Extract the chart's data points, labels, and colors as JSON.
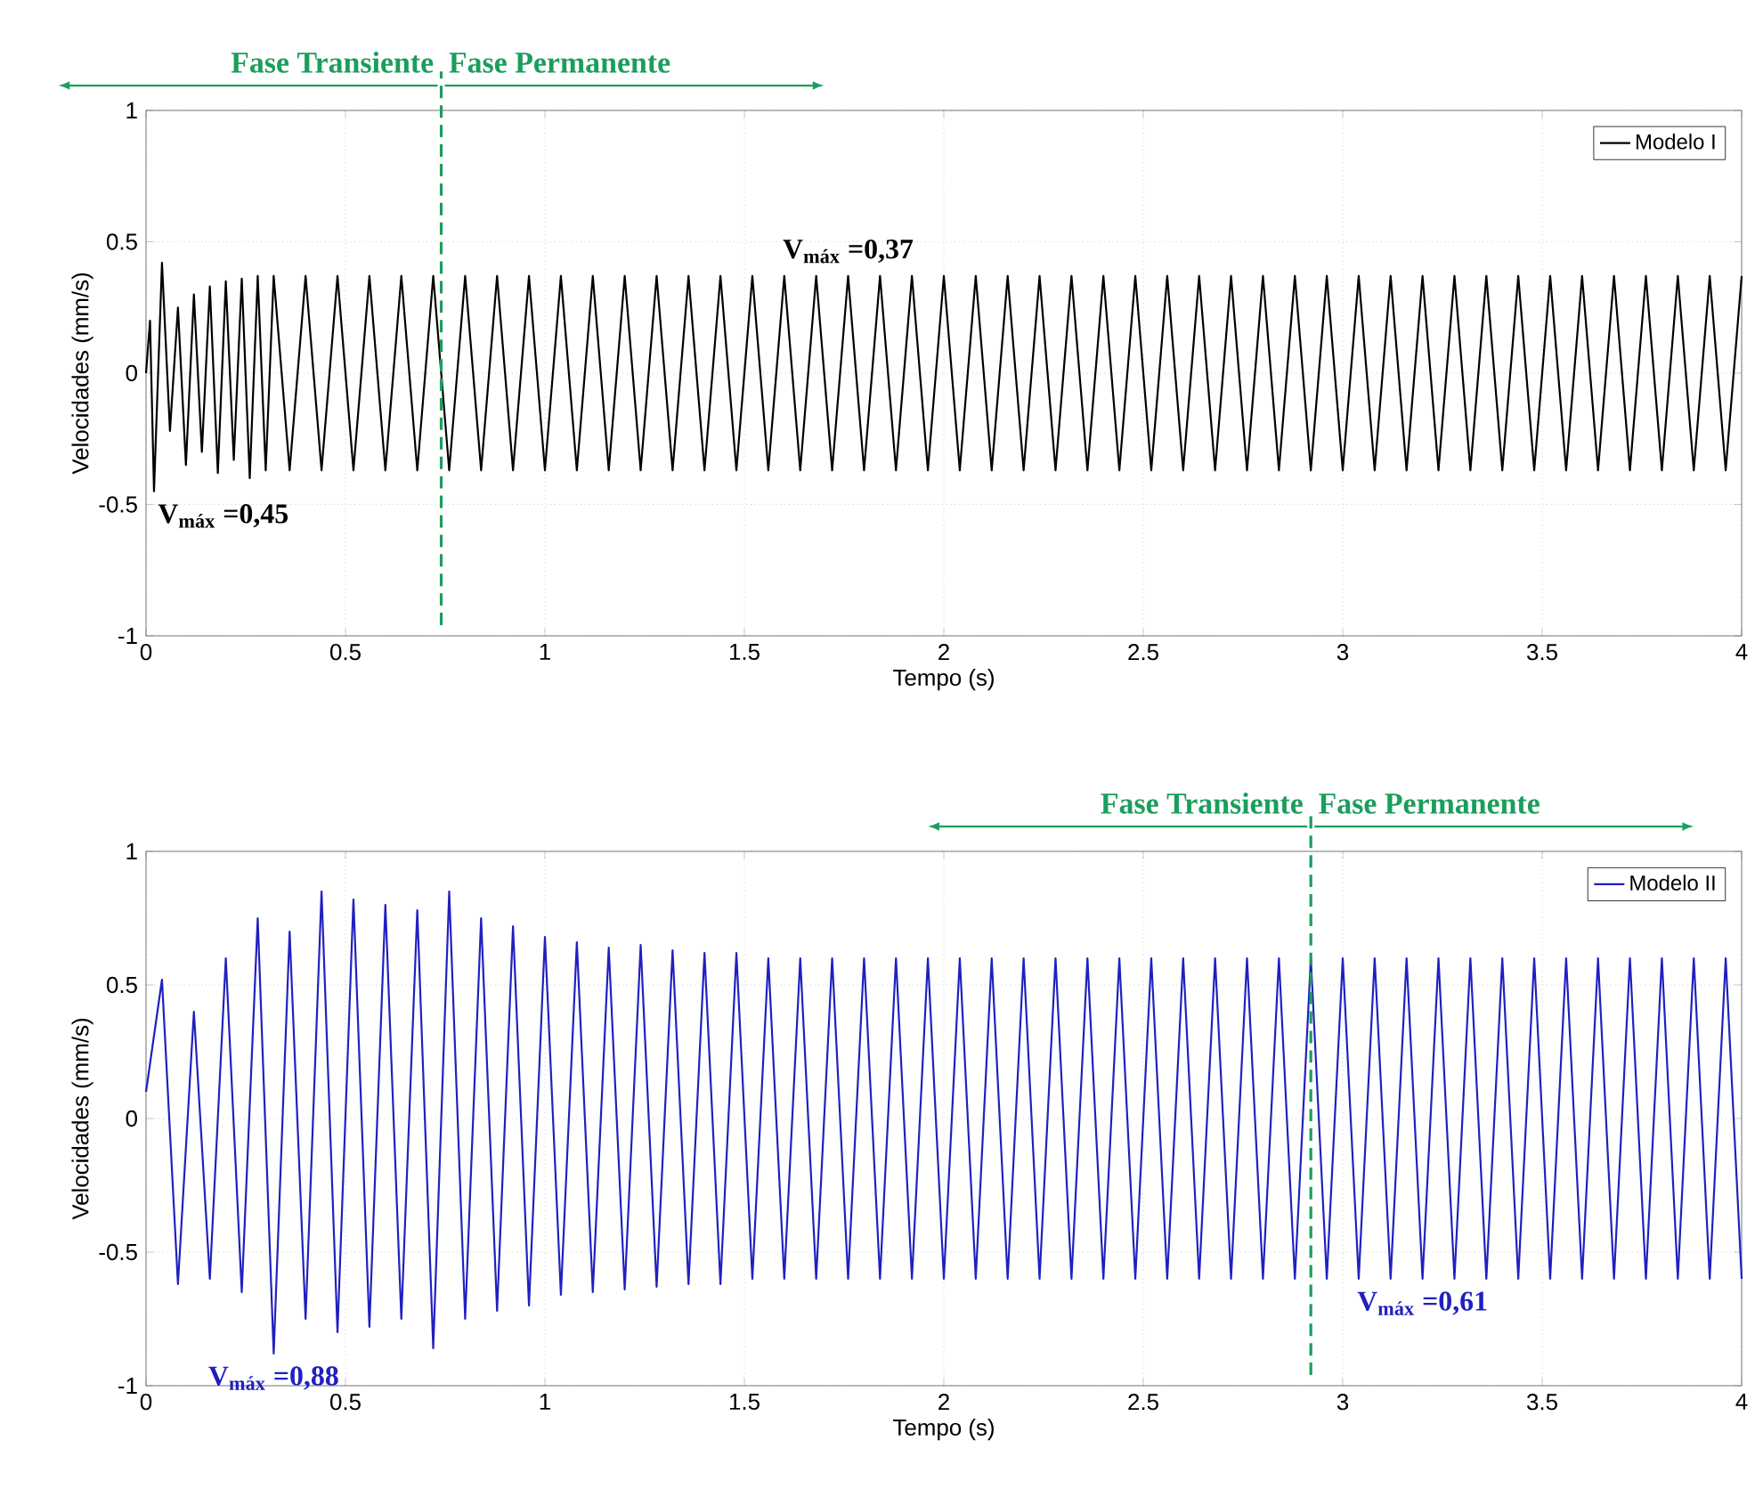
{
  "chart_data": [
    {
      "type": "line",
      "xlabel": "Tempo (s)",
      "ylabel": "Velocidades (mm/s)",
      "xlim": [
        0,
        4
      ],
      "ylim": [
        -1,
        1
      ],
      "xticks": [
        0,
        0.5,
        1,
        1.5,
        2,
        2.5,
        3,
        3.5,
        4
      ],
      "yticks": [
        -1,
        -0.5,
        0,
        0.5,
        1
      ],
      "grid": true,
      "legend": "top right",
      "marker": "none",
      "line_style": "solid",
      "series": [
        {
          "name": "Modelo I",
          "color": "#000000",
          "x": [
            0,
            0.01,
            0.02,
            0.04,
            0.06,
            0.08,
            0.1,
            0.12,
            0.14,
            0.16,
            0.18,
            0.2,
            0.22,
            0.24,
            0.26,
            0.28,
            0.3,
            0.32,
            0.36,
            0.4,
            0.44,
            0.48,
            0.52,
            0.56,
            0.6,
            0.64,
            0.68,
            0.72,
            0.76,
            0.8,
            0.84,
            0.88,
            0.92,
            0.96,
            1.0,
            1.04,
            1.08,
            1.12,
            1.16,
            1.2,
            1.24,
            1.28,
            1.32,
            1.36,
            1.4,
            1.44,
            1.48,
            1.52,
            1.56,
            1.6,
            1.64,
            1.68,
            1.72,
            1.76,
            1.8,
            1.84,
            1.88,
            1.92,
            1.96,
            2.0,
            2.04,
            2.08,
            2.12,
            2.16,
            2.2,
            2.24,
            2.28,
            2.32,
            2.36,
            2.4,
            2.44,
            2.48,
            2.52,
            2.56,
            2.6,
            2.64,
            2.68,
            2.72,
            2.76,
            2.8,
            2.84,
            2.88,
            2.92,
            2.96,
            3.0,
            3.04,
            3.08,
            3.12,
            3.16,
            3.2,
            3.24,
            3.28,
            3.32,
            3.36,
            3.4,
            3.44,
            3.48,
            3.52,
            3.56,
            3.6,
            3.64,
            3.68,
            3.72,
            3.76,
            3.8,
            3.84,
            3.88,
            3.92,
            3.96,
            4.0
          ],
          "values": [
            0,
            0.2,
            -0.45,
            0.42,
            -0.22,
            0.25,
            -0.35,
            0.3,
            -0.3,
            0.33,
            -0.38,
            0.35,
            -0.33,
            0.36,
            -0.4,
            0.37,
            -0.37,
            0.37,
            -0.37,
            0.37,
            -0.37,
            0.37,
            -0.37,
            0.37,
            -0.37,
            0.37,
            -0.37,
            0.37,
            -0.37,
            0.37,
            -0.37,
            0.37,
            -0.37,
            0.37,
            -0.37,
            0.37,
            -0.37,
            0.37,
            -0.37,
            0.37,
            -0.37,
            0.37,
            -0.37,
            0.37,
            -0.37,
            0.37,
            -0.37,
            0.37,
            -0.37,
            0.37,
            -0.37,
            0.37,
            -0.37,
            0.37,
            -0.37,
            0.37,
            -0.37,
            0.37,
            -0.37,
            0.37,
            -0.37,
            0.37,
            -0.37,
            0.37,
            -0.37,
            0.37,
            -0.37,
            0.37,
            -0.37,
            0.37,
            -0.37,
            0.37,
            -0.37,
            0.37,
            -0.37,
            0.37,
            -0.37,
            0.37,
            -0.37,
            0.37,
            -0.37,
            0.37,
            -0.37,
            0.37,
            -0.37,
            0.37,
            -0.37,
            0.37,
            -0.37,
            0.37,
            -0.37,
            0.37,
            -0.37,
            0.37,
            -0.37,
            0.37,
            -0.37,
            0.37,
            -0.37,
            0.37,
            -0.37,
            0.37,
            -0.37,
            0.37,
            -0.37,
            0.37,
            -0.37,
            0.37,
            -0.37,
            0.37
          ]
        }
      ],
      "ref_lines": [
        {
          "axis": "x",
          "value": 0.74,
          "color": "#1a9e5c",
          "line_style": "dashed"
        }
      ],
      "annotations": [
        "Fase Transiente",
        "Fase Permanente",
        {
          "text": "V$_{máx}$ =0,45",
          "x": 0.02,
          "y": -0.45
        },
        {
          "text": "V$_{máx}$ =0,37",
          "x": 1.76,
          "y": 0.37
        }
      ]
    },
    {
      "type": "line",
      "xlabel": "Tempo (s)",
      "ylabel": "Velocidades (mm/s)",
      "xlim": [
        0,
        4
      ],
      "ylim": [
        -1,
        1
      ],
      "xticks": [
        0,
        0.5,
        1,
        1.5,
        2,
        2.5,
        3,
        3.5,
        4
      ],
      "yticks": [
        -1,
        -0.5,
        0,
        0.5,
        1
      ],
      "grid": true,
      "legend": "top right",
      "marker": "none",
      "line_style": "solid",
      "series": [
        {
          "name": "Modelo II",
          "color": "#2020c0",
          "x": [
            0,
            0.04,
            0.08,
            0.12,
            0.16,
            0.2,
            0.24,
            0.28,
            0.32,
            0.36,
            0.4,
            0.44,
            0.48,
            0.52,
            0.56,
            0.6,
            0.64,
            0.68,
            0.72,
            0.76,
            0.8,
            0.84,
            0.88,
            0.92,
            0.96,
            1.0,
            1.04,
            1.08,
            1.12,
            1.16,
            1.2,
            1.24,
            1.28,
            1.32,
            1.36,
            1.4,
            1.44,
            1.48,
            1.52,
            1.56,
            1.6,
            1.64,
            1.68,
            1.72,
            1.76,
            1.8,
            1.84,
            1.88,
            1.92,
            1.96,
            2.0,
            2.04,
            2.08,
            2.12,
            2.16,
            2.2,
            2.24,
            2.28,
            2.32,
            2.36,
            2.4,
            2.44,
            2.48,
            2.52,
            2.56,
            2.6,
            2.64,
            2.68,
            2.72,
            2.76,
            2.8,
            2.84,
            2.88,
            2.92,
            2.96,
            3.0,
            3.04,
            3.08,
            3.12,
            3.16,
            3.2,
            3.24,
            3.28,
            3.32,
            3.36,
            3.4,
            3.44,
            3.48,
            3.52,
            3.56,
            3.6,
            3.64,
            3.68,
            3.72,
            3.76,
            3.8,
            3.84,
            3.88,
            3.92,
            3.96,
            4.0
          ],
          "values": [
            0.1,
            0.52,
            -0.62,
            0.4,
            -0.6,
            0.6,
            -0.65,
            0.75,
            -0.88,
            0.7,
            -0.75,
            0.85,
            -0.8,
            0.82,
            -0.78,
            0.8,
            -0.75,
            0.78,
            -0.86,
            0.85,
            -0.75,
            0.75,
            -0.72,
            0.72,
            -0.7,
            0.68,
            -0.66,
            0.66,
            -0.65,
            0.64,
            -0.64,
            0.65,
            -0.63,
            0.63,
            -0.62,
            0.62,
            -0.62,
            0.62,
            -0.6,
            0.6,
            -0.6,
            0.6,
            -0.6,
            0.6,
            -0.6,
            0.6,
            -0.6,
            0.6,
            -0.6,
            0.6,
            -0.6,
            0.6,
            -0.6,
            0.6,
            -0.6,
            0.6,
            -0.6,
            0.6,
            -0.6,
            0.6,
            -0.6,
            0.6,
            -0.6,
            0.6,
            -0.6,
            0.6,
            -0.6,
            0.6,
            -0.6,
            0.6,
            -0.6,
            0.6,
            -0.6,
            0.6,
            -0.6,
            0.6,
            -0.6,
            0.6,
            -0.6,
            0.6,
            -0.6,
            0.6,
            -0.6,
            0.6,
            -0.6,
            0.6,
            -0.6,
            0.6,
            -0.6,
            0.6,
            -0.6,
            0.6,
            -0.6,
            0.6,
            -0.6,
            0.6,
            -0.6,
            0.6,
            -0.6,
            0.6,
            -0.6
          ]
        }
      ],
      "ref_lines": [
        {
          "axis": "x",
          "value": 2.92,
          "color": "#1a9e5c",
          "line_style": "dashed"
        }
      ],
      "annotations": [
        "Fase Transiente",
        "Fase Permanente",
        {
          "text": "V$_{máx}$ =0,88",
          "x": 0.32,
          "y": -0.88
        },
        {
          "text": "V$_{máx}$ =0,61",
          "x": 3.2,
          "y": -0.6
        }
      ]
    }
  ]
}
